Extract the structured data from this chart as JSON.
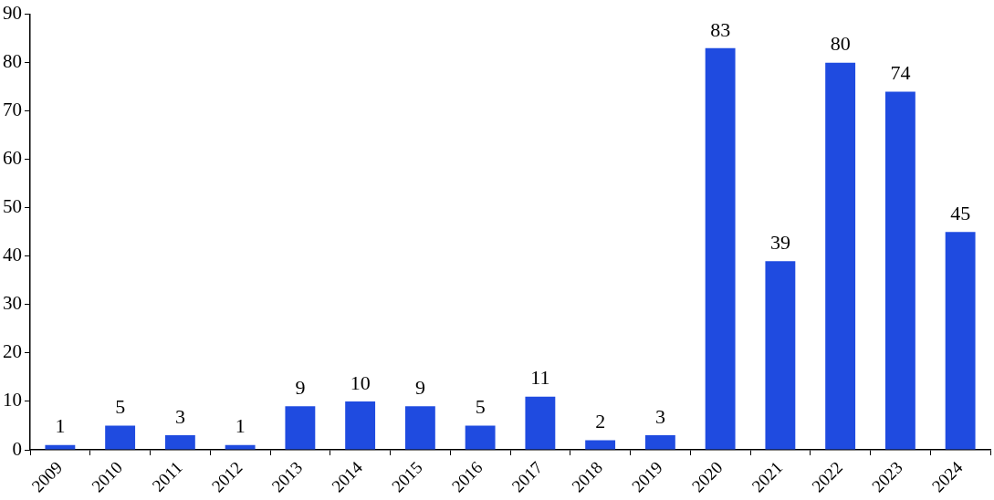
{
  "chart_data": {
    "type": "bar",
    "categories": [
      "2009",
      "2010",
      "2011",
      "2012",
      "2013",
      "2014",
      "2015",
      "2016",
      "2017",
      "2018",
      "2019",
      "2020",
      "2021",
      "2022",
      "2023",
      "2024"
    ],
    "values": [
      1,
      5,
      3,
      1,
      9,
      10,
      9,
      5,
      11,
      2,
      3,
      83,
      39,
      80,
      74,
      45
    ],
    "color": "#1f4be0",
    "ylim": [
      0,
      90
    ],
    "yticks": [
      0,
      10,
      20,
      30,
      40,
      50,
      60,
      70,
      80,
      90
    ],
    "grid": false,
    "legend": false,
    "data_labels": true
  }
}
